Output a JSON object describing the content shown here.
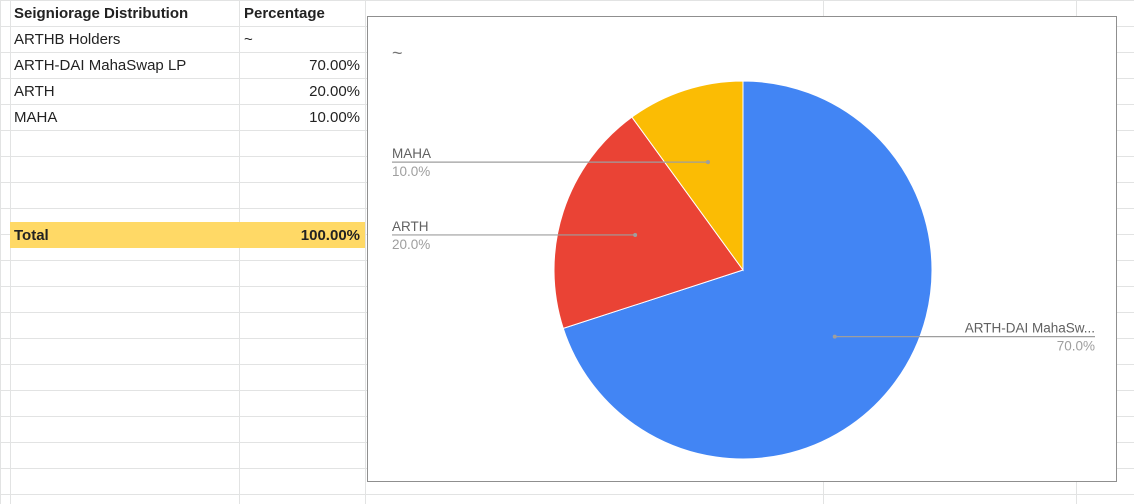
{
  "sheet": {
    "header": {
      "col1": "Seigniorage Distribution",
      "col2": "Percentage"
    },
    "rows": [
      {
        "name": "ARTHB Holders",
        "value": "~"
      },
      {
        "name": "ARTH-DAI MahaSwap LP",
        "value": "70.00%"
      },
      {
        "name": "ARTH",
        "value": "20.00%"
      },
      {
        "name": "MAHA",
        "value": "10.00%"
      }
    ],
    "total": {
      "label": "Total",
      "value": "100.00%"
    }
  },
  "chart_data": {
    "type": "pie",
    "title": "~",
    "slices": [
      {
        "label": "ARTH-DAI MahaSwap LP",
        "display_label": "ARTH-DAI MahaSw...",
        "value": 70.0,
        "pct_label": "70.0%",
        "color": "#4285f4"
      },
      {
        "label": "ARTH",
        "display_label": "ARTH",
        "value": 20.0,
        "pct_label": "20.0%",
        "color": "#ea4335"
      },
      {
        "label": "MAHA",
        "display_label": "MAHA",
        "value": 10.0,
        "pct_label": "10.0%",
        "color": "#fbbc04"
      }
    ]
  }
}
